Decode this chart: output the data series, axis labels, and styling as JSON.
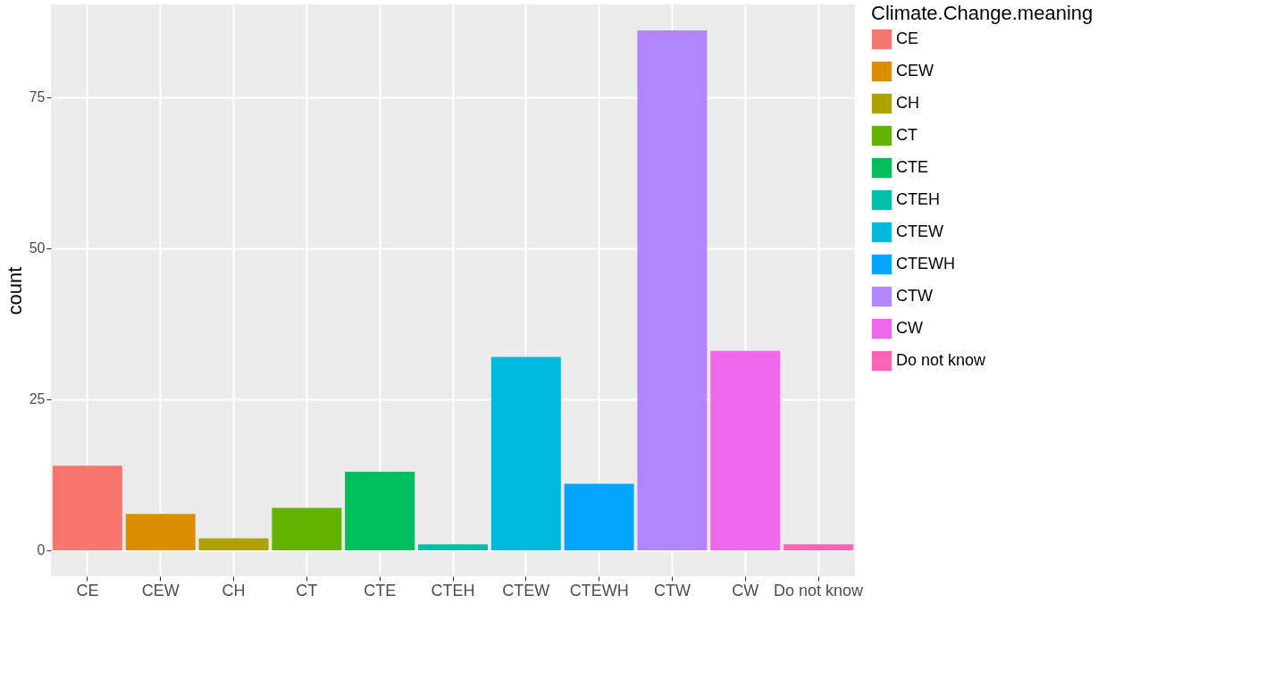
{
  "chart_data": {
    "type": "bar",
    "ylabel": "count",
    "legend_title": "Climate.Change.meaning",
    "categories": [
      "CE",
      "CEW",
      "CH",
      "CT",
      "CTE",
      "CTEH",
      "CTEW",
      "CTEWH",
      "CTW",
      "CW",
      "Do not know"
    ],
    "series": [
      {
        "name": "CE",
        "color": "#f8766d",
        "values": [
          14,
          null,
          null,
          null,
          null,
          null,
          null,
          null,
          null,
          null,
          null
        ]
      },
      {
        "name": "CEW",
        "color": "#db8e00",
        "values": [
          null,
          6,
          null,
          null,
          null,
          null,
          null,
          null,
          null,
          null,
          null
        ]
      },
      {
        "name": "CH",
        "color": "#aea200",
        "values": [
          null,
          null,
          2,
          null,
          null,
          null,
          null,
          null,
          null,
          null,
          null
        ]
      },
      {
        "name": "CT",
        "color": "#64b200",
        "values": [
          null,
          null,
          null,
          7,
          null,
          null,
          null,
          null,
          null,
          null,
          null
        ]
      },
      {
        "name": "CTE",
        "color": "#00bd5c",
        "values": [
          null,
          null,
          null,
          null,
          13,
          null,
          null,
          null,
          null,
          null,
          null
        ]
      },
      {
        "name": "CTEH",
        "color": "#00c1a7",
        "values": [
          null,
          null,
          null,
          null,
          null,
          1,
          null,
          null,
          null,
          null,
          null
        ]
      },
      {
        "name": "CTEW",
        "color": "#00bade",
        "values": [
          null,
          null,
          null,
          null,
          null,
          null,
          32,
          null,
          null,
          null,
          null
        ]
      },
      {
        "name": "CTEWH",
        "color": "#00a6ff",
        "values": [
          null,
          null,
          null,
          null,
          null,
          null,
          null,
          11,
          null,
          null,
          null
        ]
      },
      {
        "name": "CTW",
        "color": "#b385ff",
        "values": [
          null,
          null,
          null,
          null,
          null,
          null,
          null,
          null,
          86,
          null,
          null
        ]
      },
      {
        "name": "CW",
        "color": "#ef67eb",
        "values": [
          null,
          null,
          null,
          null,
          null,
          null,
          null,
          null,
          null,
          33,
          null
        ]
      },
      {
        "name": "Do not know",
        "color": "#ff63b6",
        "values": [
          null,
          null,
          null,
          null,
          null,
          null,
          null,
          null,
          null,
          null,
          1
        ]
      }
    ],
    "ylim": [
      -4.3,
      90.3
    ],
    "yticks": [
      0,
      25,
      50,
      75
    ],
    "grid": true,
    "legend": "right"
  }
}
